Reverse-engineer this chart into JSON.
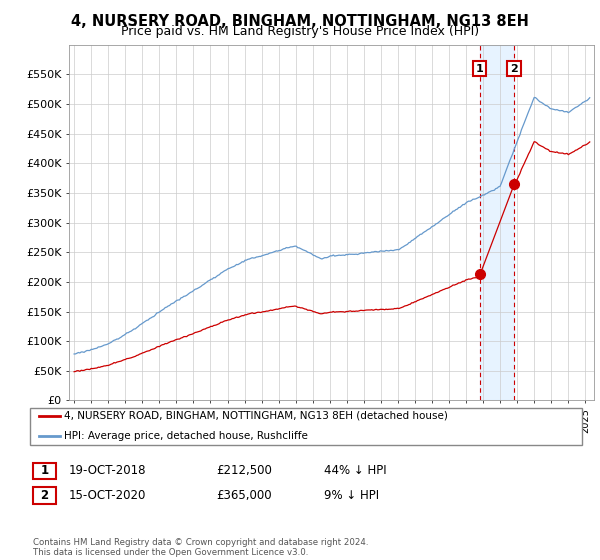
{
  "title": "4, NURSERY ROAD, BINGHAM, NOTTINGHAM, NG13 8EH",
  "subtitle": "Price paid vs. HM Land Registry's House Price Index (HPI)",
  "title_fontsize": 10.5,
  "subtitle_fontsize": 9,
  "ylim": [
    0,
    600000
  ],
  "yticks": [
    0,
    50000,
    100000,
    150000,
    200000,
    250000,
    300000,
    350000,
    400000,
    450000,
    500000,
    550000
  ],
  "ytick_labels": [
    "£0",
    "£50K",
    "£100K",
    "£150K",
    "£200K",
    "£250K",
    "£300K",
    "£350K",
    "£400K",
    "£450K",
    "£500K",
    "£550K"
  ],
  "hpi_color": "#6699cc",
  "price_color": "#cc0000",
  "marker1_year": 2018.8,
  "marker1_price": 212500,
  "marker2_year": 2020.8,
  "marker2_price": 365000,
  "legend_line1": "4, NURSERY ROAD, BINGHAM, NOTTINGHAM, NG13 8EH (detached house)",
  "legend_line2": "HPI: Average price, detached house, Rushcliffe",
  "table_row1": [
    "1",
    "19-OCT-2018",
    "£212,500",
    "44% ↓ HPI"
  ],
  "table_row2": [
    "2",
    "15-OCT-2020",
    "£365,000",
    "9% ↓ HPI"
  ],
  "footer": "Contains HM Land Registry data © Crown copyright and database right 2024.\nThis data is licensed under the Open Government Licence v3.0.",
  "background_color": "#ffffff",
  "grid_color": "#cccccc",
  "span_color": "#ddeeff",
  "vline_color": "#cc0000"
}
